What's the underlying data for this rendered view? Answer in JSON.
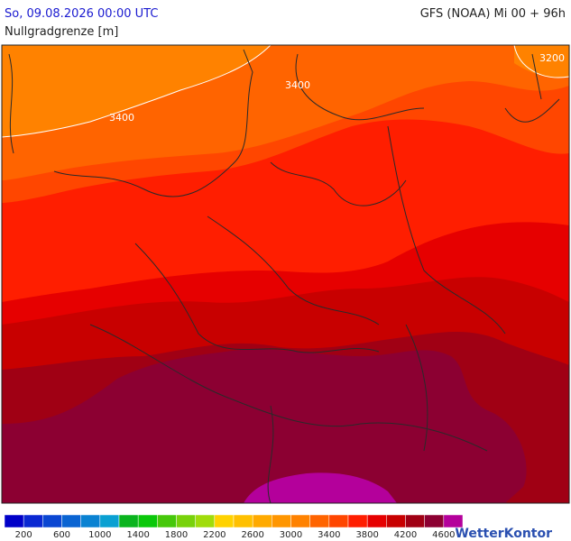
{
  "header": {
    "title": "So, 09.08.2026 00:00 UTC",
    "model": "GFS (NOAA) Mi 00 + 96h",
    "parameter": "Nullgradgrenze [m]"
  },
  "map": {
    "contour_labels": [
      "3400",
      "3400",
      "3200"
    ]
  },
  "legend": {
    "colors": [
      "#0000c8",
      "#0a28d2",
      "#0a46d2",
      "#0a64d2",
      "#0a82d2",
      "#0aa0d2",
      "#0ab41e",
      "#0ac80a",
      "#46c80a",
      "#78d20a",
      "#a0dc0a",
      "#ffd200",
      "#ffc000",
      "#ffaa00",
      "#ff9600",
      "#ff8200",
      "#ff6400",
      "#ff4600",
      "#ff1e00",
      "#e60000",
      "#c80000",
      "#a00014",
      "#8c0032",
      "#b4009b"
    ],
    "labels": [
      200,
      600,
      1000,
      1400,
      1800,
      2200,
      2600,
      3000,
      3400,
      3800,
      4200,
      4600
    ]
  },
  "logo": "WetterKontor"
}
